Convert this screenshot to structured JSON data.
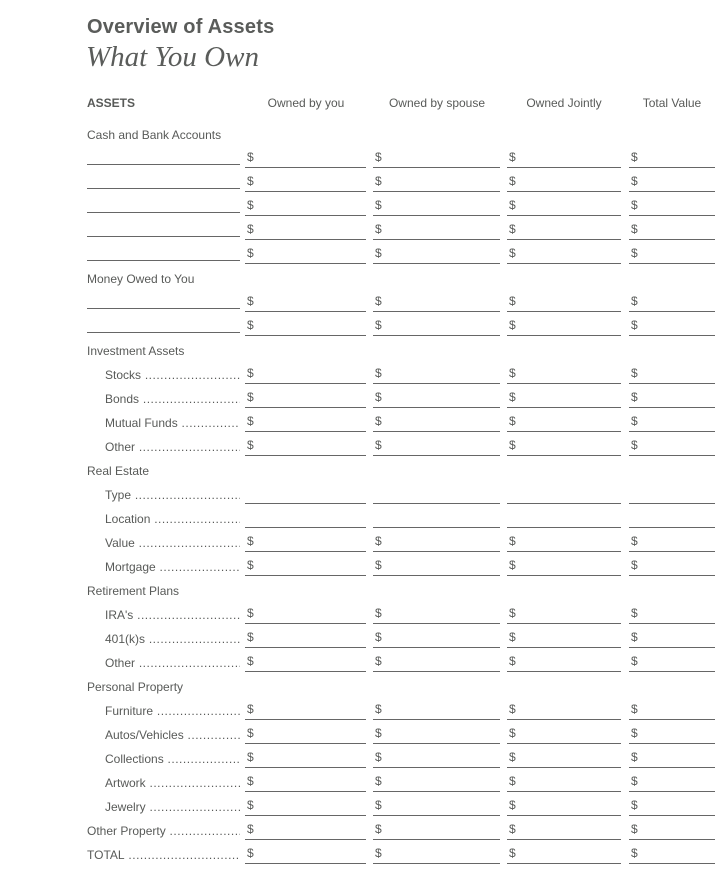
{
  "header": {
    "title": "Overview of Assets",
    "subtitle": "What You Own"
  },
  "columns": {
    "assets": "ASSETS",
    "you": "Owned by you",
    "spouse": "Owned by spouse",
    "jointly": "Owned Jointly",
    "total": "Total Value"
  },
  "currency_symbol": "$",
  "rows": [
    {
      "kind": "section",
      "label": "Cash and Bank Accounts"
    },
    {
      "kind": "blank"
    },
    {
      "kind": "blank"
    },
    {
      "kind": "blank"
    },
    {
      "kind": "blank"
    },
    {
      "kind": "blank"
    },
    {
      "kind": "section",
      "label": "Money Owed to You"
    },
    {
      "kind": "blank"
    },
    {
      "kind": "blank"
    },
    {
      "kind": "section",
      "label": "Investment Assets"
    },
    {
      "kind": "item",
      "label": "Stocks"
    },
    {
      "kind": "item",
      "label": "Bonds"
    },
    {
      "kind": "item",
      "label": "Mutual Funds"
    },
    {
      "kind": "item",
      "label": "Other"
    },
    {
      "kind": "section",
      "label": "Real Estate"
    },
    {
      "kind": "text",
      "label": "Type"
    },
    {
      "kind": "text",
      "label": "Location"
    },
    {
      "kind": "item",
      "label": "Value"
    },
    {
      "kind": "item",
      "label": "Mortgage"
    },
    {
      "kind": "section",
      "label": "Retirement Plans"
    },
    {
      "kind": "item",
      "label": "IRA's"
    },
    {
      "kind": "item",
      "label": "401(k)s"
    },
    {
      "kind": "item",
      "label": "Other"
    },
    {
      "kind": "section",
      "label": "Personal Property"
    },
    {
      "kind": "item",
      "label": "Furniture"
    },
    {
      "kind": "item",
      "label": "Autos/Vehicles"
    },
    {
      "kind": "item",
      "label": "Collections"
    },
    {
      "kind": "item",
      "label": "Artwork"
    },
    {
      "kind": "item",
      "label": "Jewelry"
    },
    {
      "kind": "total",
      "label": "Other Property"
    },
    {
      "kind": "total",
      "label": "TOTAL"
    }
  ]
}
